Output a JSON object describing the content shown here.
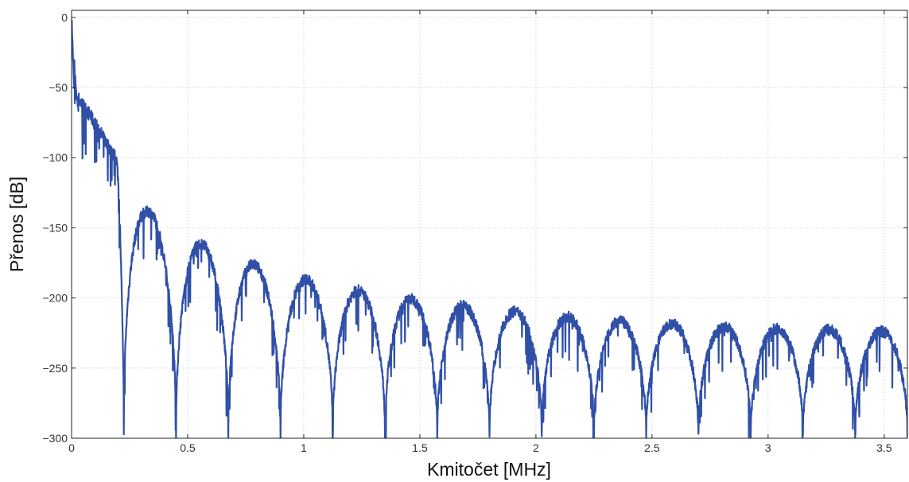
{
  "chart_data": {
    "type": "line",
    "title": "",
    "xlabel": "Kmitočet [MHz]",
    "ylabel": "Přenos [dB]",
    "xlim": [
      0,
      3.6
    ],
    "ylim": [
      -300,
      5
    ],
    "xticks": [
      0,
      0.5,
      1,
      1.5,
      2,
      2.5,
      3,
      3.5
    ],
    "xtick_labels": [
      "0",
      "0.5",
      "1",
      "1.5",
      "2",
      "2.5",
      "3",
      "3.5"
    ],
    "yticks": [
      0,
      -50,
      -100,
      -150,
      -200,
      -250,
      -300
    ],
    "ytick_labels": [
      "0",
      "−50",
      "−100",
      "−150",
      "−200",
      "−250",
      "−300"
    ],
    "grid": true,
    "line_color": "#3050a8",
    "series": [
      {
        "envelope_peaks": [
          {
            "x": 0.0,
            "y": 0
          },
          {
            "x": 0.02,
            "y": -56
          },
          {
            "x": 0.08,
            "y": -70
          },
          {
            "x": 0.32,
            "y": -137
          },
          {
            "x": 0.55,
            "y": -161
          },
          {
            "x": 0.78,
            "y": -176
          },
          {
            "x": 1.01,
            "y": -187
          },
          {
            "x": 1.24,
            "y": -195
          },
          {
            "x": 1.47,
            "y": -201
          },
          {
            "x": 1.7,
            "y": -206
          },
          {
            "x": 1.93,
            "y": -210
          },
          {
            "x": 2.16,
            "y": -214
          },
          {
            "x": 2.39,
            "y": -217
          },
          {
            "x": 2.62,
            "y": -219
          },
          {
            "x": 2.85,
            "y": -221
          },
          {
            "x": 3.08,
            "y": -222
          },
          {
            "x": 3.31,
            "y": -223
          },
          {
            "x": 3.54,
            "y": -224
          }
        ],
        "nulls": [
          {
            "x": 0.225,
            "y": -271
          },
          {
            "x": 0.45,
            "y": -300
          },
          {
            "x": 0.675,
            "y": -300
          },
          {
            "x": 0.9,
            "y": -300
          },
          {
            "x": 1.125,
            "y": -300
          },
          {
            "x": 1.35,
            "y": -300
          },
          {
            "x": 1.575,
            "y": -300
          },
          {
            "x": 1.8,
            "y": -300
          },
          {
            "x": 2.025,
            "y": -300
          },
          {
            "x": 2.25,
            "y": -300
          },
          {
            "x": 2.475,
            "y": -300
          },
          {
            "x": 2.7,
            "y": -300
          },
          {
            "x": 2.925,
            "y": -300
          },
          {
            "x": 3.15,
            "y": -300
          },
          {
            "x": 3.375,
            "y": -300
          },
          {
            "x": 3.6,
            "y": -300
          }
        ]
      }
    ]
  }
}
